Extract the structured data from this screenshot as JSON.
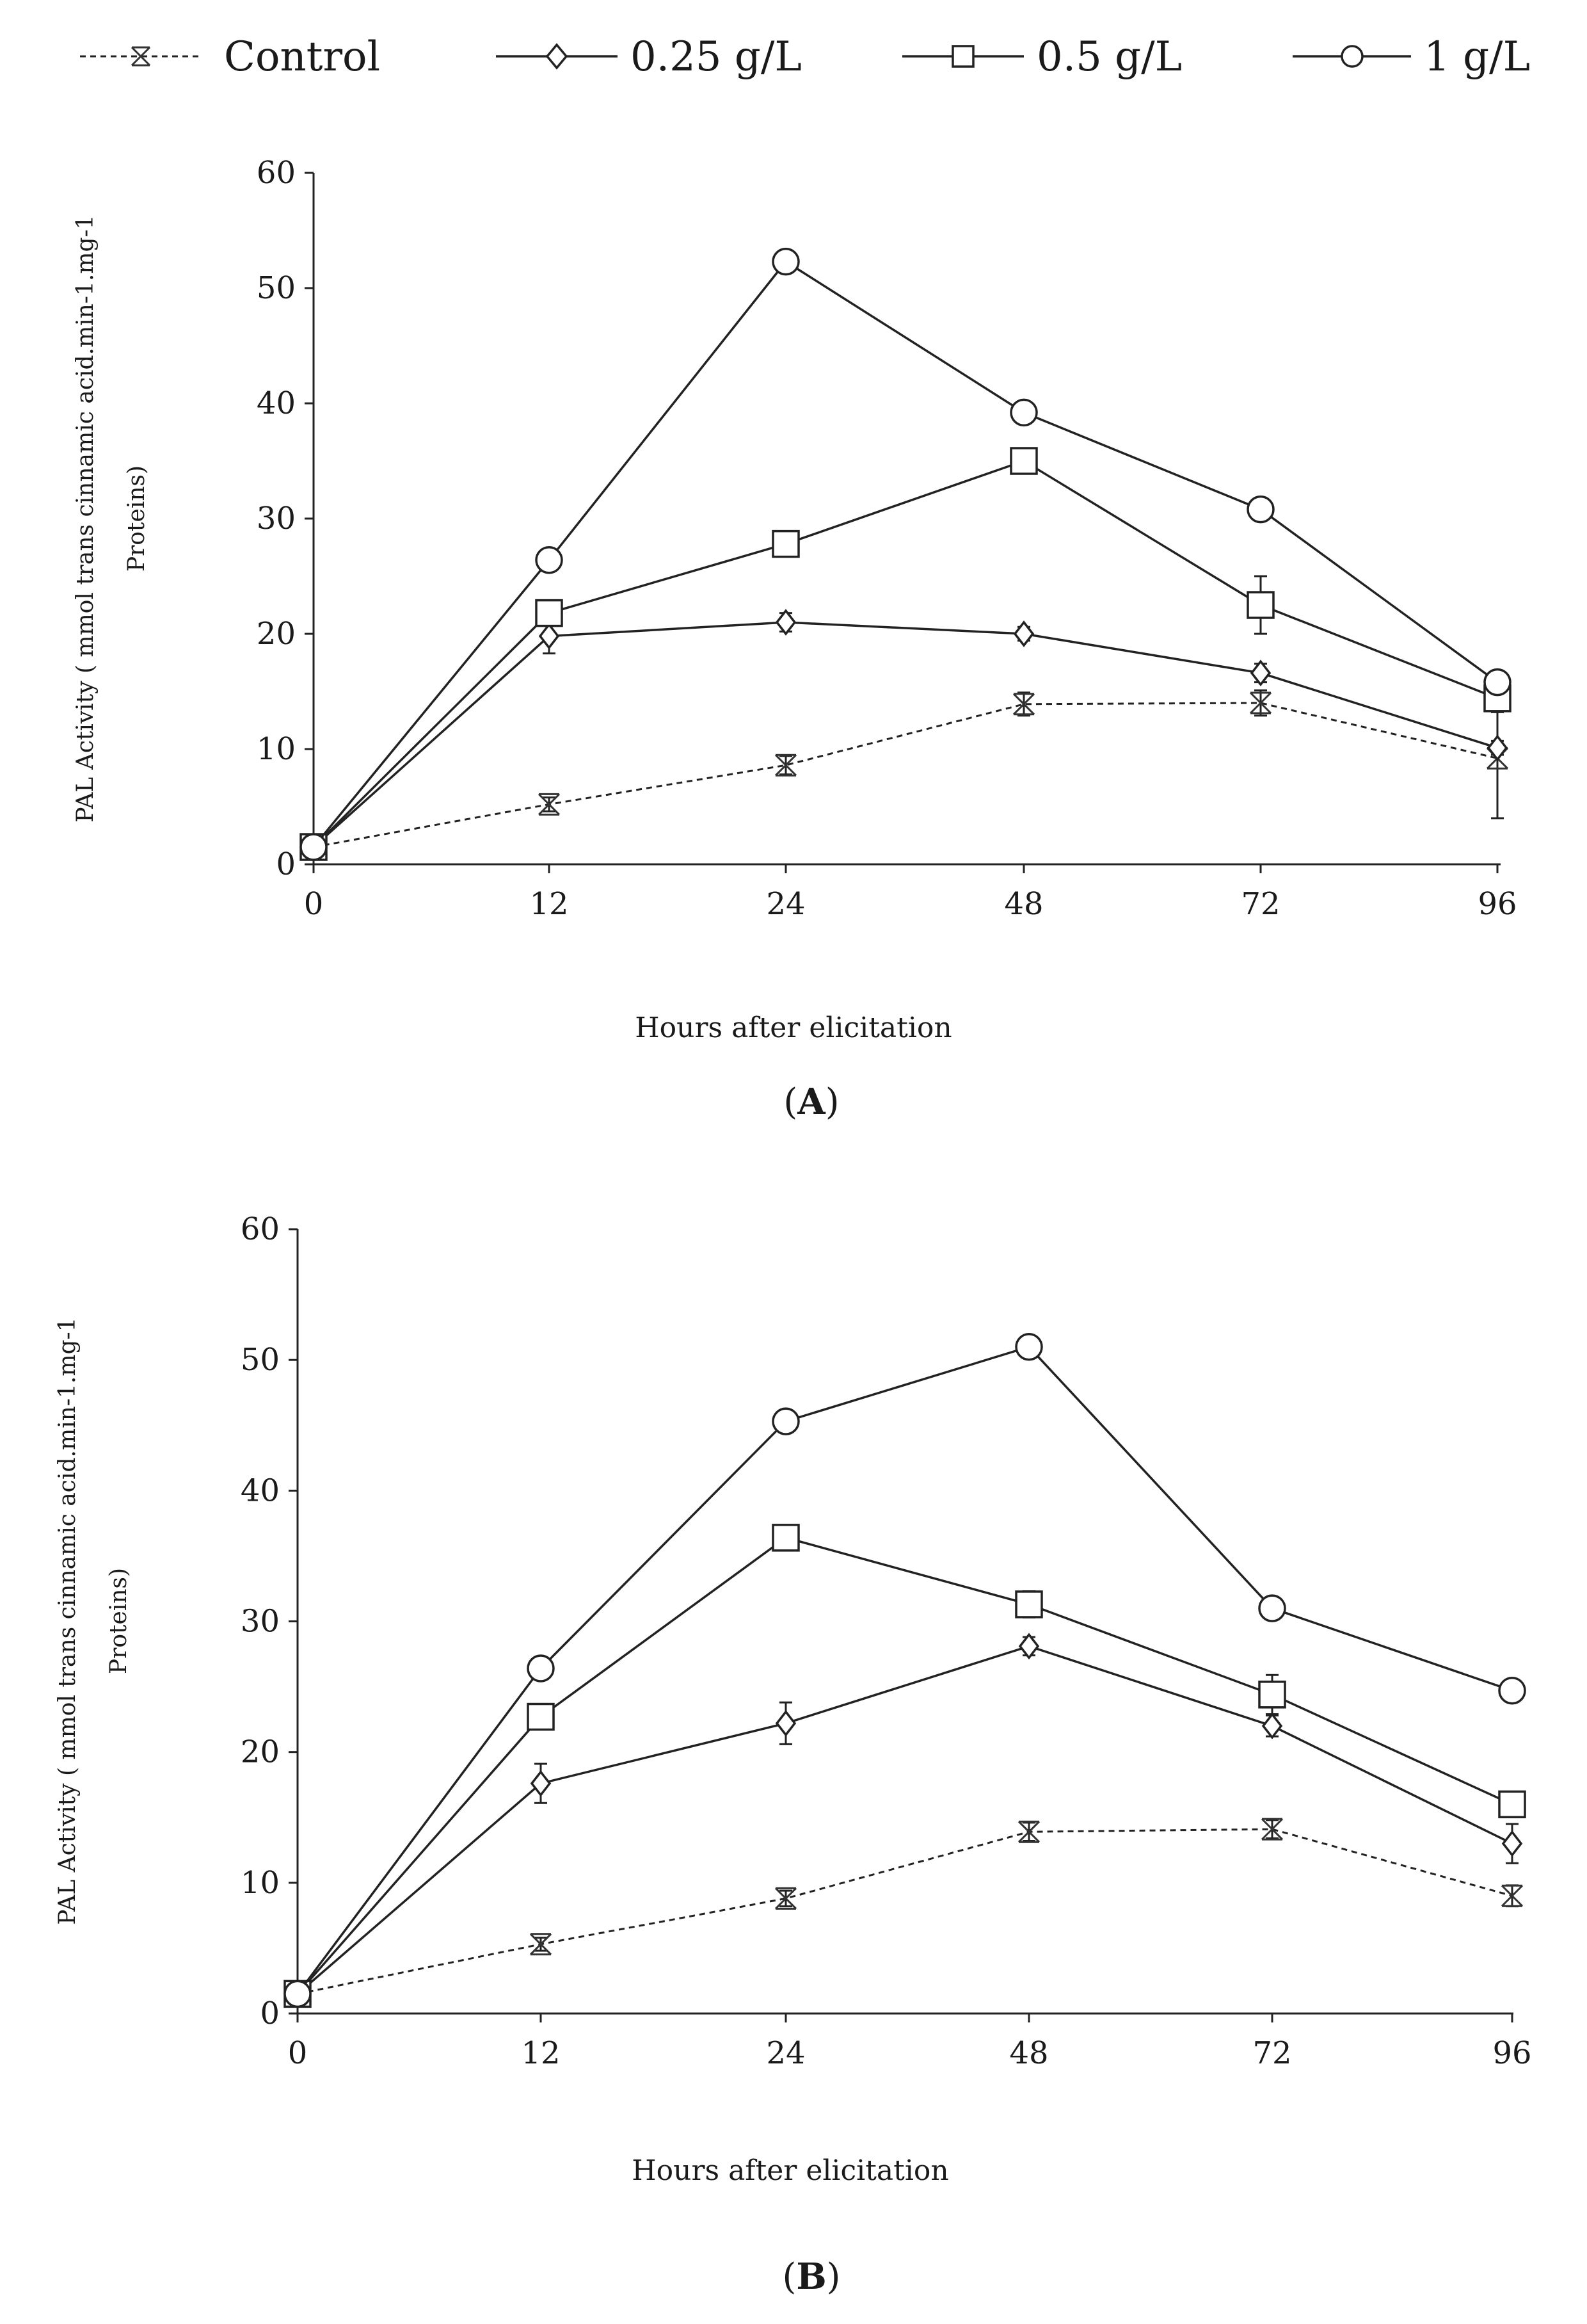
{
  "legend": {
    "items": [
      {
        "label": "Control",
        "marker": "x-cross-icon",
        "dashed": true
      },
      {
        "label": "0.25 g/L",
        "marker": "diamond-icon",
        "dashed": false
      },
      {
        "label": "0.5 g/L",
        "marker": "square-icon",
        "dashed": false
      },
      {
        "label": "1 g/L",
        "marker": "circle-icon",
        "dashed": false
      }
    ]
  },
  "chart_data": [
    {
      "type": "line",
      "panel_label": "A",
      "title": "",
      "xlabel": "Hours after elicitation",
      "ylabel_line1": "PAL Activity ( mmol trans cinnamic acid.min-1.mg-1",
      "ylabel_line2": "Proteins)",
      "categories": [
        "0",
        "12",
        "24",
        "48",
        "72",
        "96"
      ],
      "ylim": [
        0,
        60
      ],
      "yticks": [
        "0",
        "10",
        "20",
        "30",
        "40",
        "50",
        "60"
      ],
      "series": [
        {
          "name": "Control",
          "marker": "x",
          "values": [
            1.5,
            5.2,
            8.6,
            13.9,
            14.0,
            9.2
          ],
          "errors": [
            0.5,
            0.6,
            0.8,
            1.0,
            1.1,
            5.2
          ]
        },
        {
          "name": "0.25 g/L",
          "marker": "diamond",
          "values": [
            1.5,
            19.8,
            21.0,
            20.0,
            16.6,
            10.1
          ],
          "errors": [
            0.5,
            1.5,
            0.8,
            0.6,
            0.8,
            0.6
          ]
        },
        {
          "name": "0.5 g/L",
          "marker": "square",
          "values": [
            1.5,
            21.8,
            27.8,
            35.0,
            22.5,
            14.4
          ],
          "errors": [
            0.5,
            0.6,
            0.6,
            0.8,
            2.5,
            1.2
          ]
        },
        {
          "name": "1 g/L",
          "marker": "circle",
          "values": [
            1.5,
            26.4,
            52.3,
            39.2,
            30.8,
            15.8
          ],
          "errors": [
            0.5,
            0.6,
            0.6,
            0.6,
            0.6,
            0.6
          ]
        }
      ]
    },
    {
      "type": "line",
      "panel_label": "B",
      "title": "",
      "xlabel": "Hours after  elicitation",
      "ylabel_line1": "PAL Activity ( mmol trans cinnamic acid.min-1.mg-1",
      "ylabel_line2": "Proteins)",
      "categories": [
        "0",
        "12",
        "24",
        "48",
        "72",
        "96"
      ],
      "ylim": [
        0,
        60
      ],
      "yticks": [
        "0",
        "10",
        "20",
        "30",
        "40",
        "50",
        "60"
      ],
      "series": [
        {
          "name": "Control",
          "marker": "x",
          "values": [
            1.5,
            5.3,
            8.8,
            13.9,
            14.1,
            9.0
          ],
          "errors": [
            0.4,
            0.5,
            0.6,
            0.7,
            0.7,
            0.8
          ]
        },
        {
          "name": "0.25 g/L",
          "marker": "diamond",
          "values": [
            1.5,
            17.6,
            22.2,
            28.1,
            22.0,
            13.0
          ],
          "errors": [
            0.4,
            1.5,
            1.6,
            0.7,
            0.8,
            1.5
          ]
        },
        {
          "name": "0.5 g/L",
          "marker": "square",
          "values": [
            1.5,
            22.7,
            36.4,
            31.3,
            24.4,
            16.0
          ],
          "errors": [
            0.4,
            0.8,
            0.8,
            1.0,
            1.5,
            0.6
          ]
        },
        {
          "name": "1 g/L",
          "marker": "circle",
          "values": [
            1.5,
            26.4,
            45.3,
            51.0,
            31.0,
            24.7
          ],
          "errors": [
            0.4,
            0.6,
            0.6,
            0.6,
            0.6,
            0.6
          ]
        }
      ]
    }
  ]
}
